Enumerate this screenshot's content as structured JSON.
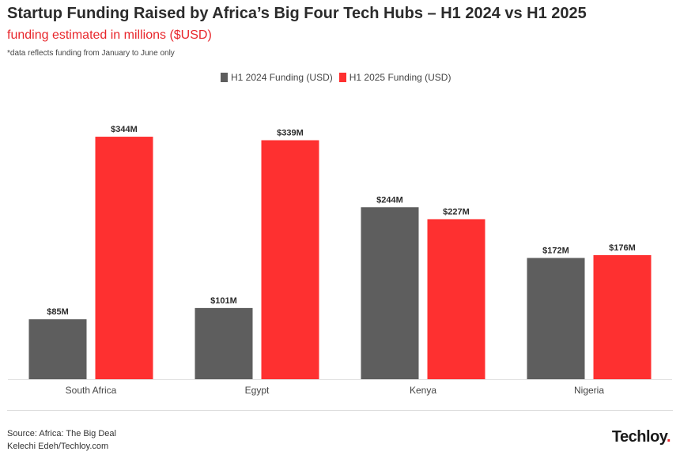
{
  "chart_data": {
    "type": "bar",
    "title": "Startup Funding Raised by Africa’s Big Four Tech Hubs – H1 2024 vs H1 2025",
    "subtitle": "funding estimated in millions ($USD)",
    "note": "*data reflects funding from January to June only",
    "categories": [
      "South Africa",
      "Egypt",
      "Kenya",
      "Nigeria"
    ],
    "series": [
      {
        "name": "H1 2024 Funding (USD)",
        "color": "#5e5e5e",
        "values": [
          85,
          101,
          244,
          172
        ],
        "labels": [
          "$85M",
          "$101M",
          "$244M",
          "$172M"
        ]
      },
      {
        "name": "H1 2025 Funding (USD)",
        "color": "#fe3030",
        "values": [
          344,
          339,
          227,
          176
        ],
        "labels": [
          "$344M",
          "$339M",
          "$227M",
          "$176M"
        ]
      }
    ],
    "xlabel": "",
    "ylabel": "",
    "ylim": [
      0,
      390
    ],
    "grid": false,
    "legend": "top-center"
  },
  "footer": {
    "source": "Source: Africa: The Big Deal",
    "author": "Kelechi Edeh/Techloy.com",
    "brand": "Techloy",
    "brand_dot": "."
  }
}
